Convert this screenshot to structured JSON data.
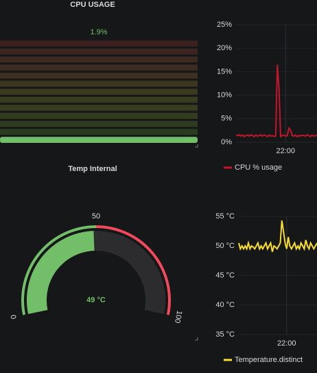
{
  "chart_data": [
    {
      "type": "bargauge",
      "title": "CPU USAGE",
      "value": 1.9,
      "value_label": "1.9%",
      "ylim": [
        0,
        100
      ],
      "color": "#73bf69"
    },
    {
      "type": "line",
      "x": [
        1290,
        1291,
        1292,
        1293,
        1294,
        1295,
        1296,
        1297,
        1298,
        1299,
        1300,
        1301,
        1302,
        1303,
        1304,
        1305,
        1306,
        1307,
        1308,
        1309,
        1310,
        1311,
        1312,
        1313,
        1314,
        1315,
        1316,
        1317,
        1318,
        1319,
        1320,
        1321,
        1322,
        1323,
        1324,
        1325,
        1326,
        1327,
        1328,
        1329,
        1330,
        1331,
        1332,
        1333,
        1334,
        1335,
        1336,
        1337,
        1338,
        1339
      ],
      "series": [
        {
          "name": "CPU % usage",
          "color": "#c4162a",
          "values": [
            1.5,
            1.4,
            1.6,
            1.3,
            1.5,
            1.2,
            1.4,
            1.5,
            1.3,
            1.6,
            1.4,
            1.2,
            1.5,
            1.3,
            1.4,
            1.6,
            1.3,
            1.5,
            1.4,
            1.2,
            1.5,
            1.3,
            1.4,
            1.2,
            1.3,
            16.5,
            11.5,
            1.2,
            1.4,
            1.5,
            1.3,
            1.4,
            3.0,
            2.6,
            1.4,
            1.3,
            1.5,
            1.2,
            1.4,
            1.3,
            1.5,
            1.4,
            1.3,
            1.6,
            1.4,
            1.2,
            1.5,
            1.3,
            1.4,
            1.5
          ]
        }
      ],
      "xlim": [
        1290,
        1339
      ],
      "xticks": [
        {
          "value": 1320,
          "label": "22:00"
        }
      ],
      "ylim": [
        0,
        25
      ],
      "yticks": [
        {
          "value": 0,
          "label": "0%"
        },
        {
          "value": 5,
          "label": "5%"
        },
        {
          "value": 10,
          "label": "10%"
        },
        {
          "value": 15,
          "label": "15%"
        },
        {
          "value": 20,
          "label": "20%"
        },
        {
          "value": 25,
          "label": "25%"
        }
      ],
      "grid": true
    },
    {
      "type": "gauge",
      "title": "Temp Internal",
      "value": 49,
      "value_label": "49 °C",
      "ylim": [
        0,
        100
      ],
      "yticks": [
        0,
        50,
        100
      ],
      "threshold": 50,
      "color": "#73bf69",
      "threshold_color": "#f2495c"
    },
    {
      "type": "line",
      "x": [
        1290,
        1291,
        1292,
        1293,
        1294,
        1295,
        1296,
        1297,
        1298,
        1299,
        1300,
        1301,
        1302,
        1303,
        1304,
        1305,
        1306,
        1307,
        1308,
        1309,
        1310,
        1311,
        1312,
        1313,
        1314,
        1315,
        1316,
        1317,
        1318,
        1319,
        1320,
        1321,
        1322,
        1323,
        1324,
        1325,
        1326,
        1327,
        1328,
        1329,
        1330,
        1331,
        1332,
        1333,
        1334,
        1335,
        1336,
        1337,
        1338,
        1339
      ],
      "series": [
        {
          "name": "Temperature.distinct",
          "color": "#fade2a",
          "values": [
            50.5,
            49.5,
            50.0,
            49.5,
            50.0,
            49.5,
            50.5,
            49.5,
            50.0,
            49.8,
            49.5,
            50.0,
            50.5,
            49.5,
            50.0,
            49.5,
            50.0,
            50.5,
            49.5,
            50.0,
            50.5,
            49.0,
            50.0,
            49.8,
            49.5,
            50.0,
            50.5,
            54.3,
            52.5,
            50.5,
            49.5,
            51.5,
            50.0,
            49.5,
            50.0,
            50.5,
            49.5,
            50.0,
            49.5,
            50.5,
            50.0,
            49.5,
            51.0,
            50.0,
            49.5,
            50.5,
            50.0,
            49.5,
            50.0,
            50.5
          ]
        }
      ],
      "xlim": [
        1290,
        1339
      ],
      "xticks": [
        {
          "value": 1320,
          "label": "22:00"
        }
      ],
      "ylim": [
        35,
        55
      ],
      "yticks": [
        {
          "value": 35,
          "label": "35 °C"
        },
        {
          "value": 40,
          "label": "40 °C"
        },
        {
          "value": 45,
          "label": "45 °C"
        },
        {
          "value": 50,
          "label": "50 °C"
        },
        {
          "value": 55,
          "label": "55 °C"
        }
      ],
      "grid": true
    }
  ]
}
